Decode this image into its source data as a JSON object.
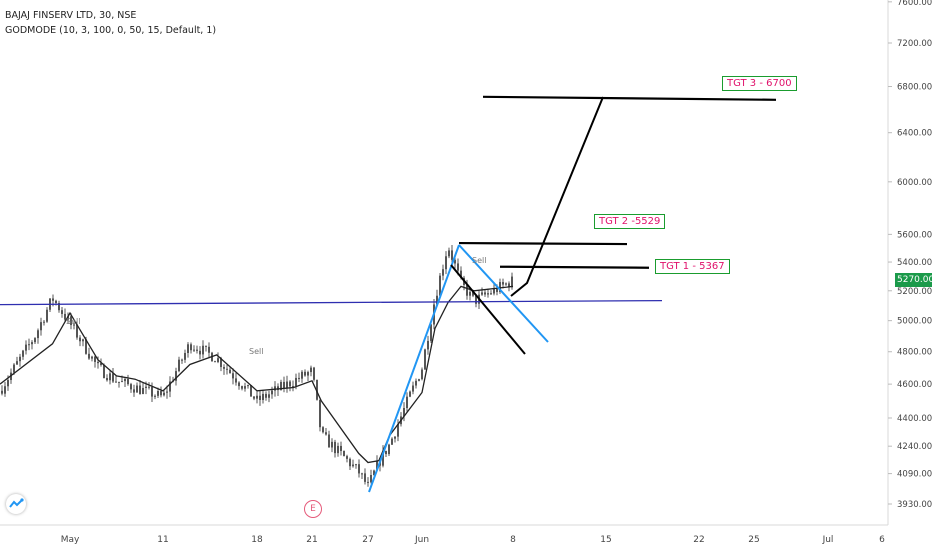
{
  "header": {
    "symbol": "BAJAJ FINSERV LTD, 30, NSE",
    "indicator": "GODMODE (10, 3, 100, 0, 50, 15, Default, 1)"
  },
  "targets": [
    {
      "label": "TGT 3 - 6700"
    },
    {
      "label": "TGT 2 -5529"
    },
    {
      "label": "TGT 1 - 5367"
    }
  ],
  "last_price": "5270.00",
  "event_marker": "E",
  "colors": {
    "candle": "#555555",
    "moving_average": "#222222",
    "horizontal_support": "#2f2fb0",
    "trend_channel": "#2196f3",
    "projection_lines": "#000000",
    "target_border": "#1a9c2e",
    "target_text": "#e0116b",
    "price_badge": "#1b9a4a"
  },
  "icons": {
    "logo": "tradingview-logo-icon"
  },
  "chart_data": {
    "type": "line",
    "y_scale": "log",
    "ylim": [
      3850,
      7800
    ],
    "y_ticks": [
      "7600.00",
      "7200.00",
      "6800.00",
      "6400.00",
      "6000.00",
      "5600.00",
      "5400.00",
      "5200.00",
      "5000.00",
      "4800.00",
      "4600.00",
      "4400.00",
      "4240.00",
      "4090.00",
      "3930.00"
    ],
    "x_ticks": [
      "May",
      "11",
      "18",
      "21",
      "27",
      "Jun",
      "8",
      "15",
      "22",
      "25",
      "Jul",
      "6"
    ],
    "annotations": [
      "Sell",
      "Sell",
      "Sell"
    ],
    "series": [
      {
        "role": "price_path",
        "x": [
          "Apr 27",
          "Apr 29",
          "Apr 30",
          "May 1",
          "May 4",
          "May 6",
          "May 8",
          "May 11",
          "May 13",
          "May 15",
          "May 18",
          "May 20",
          "May 21",
          "May 22",
          "May 26",
          "May 27",
          "May 28",
          "May 29",
          "Jun 1",
          "Jun 2",
          "Jun 3",
          "Jun 4",
          "Jun 5",
          "Jun 8"
        ],
        "values": [
          4560,
          4900,
          5150,
          4980,
          4700,
          4620,
          4580,
          4520,
          4850,
          4760,
          4500,
          4620,
          4680,
          4300,
          4100,
          4020,
          4150,
          4250,
          4700,
          5150,
          5520,
          5250,
          5130,
          5270
        ]
      },
      {
        "role": "moving_average",
        "x": [
          "Apr 27",
          "Apr 30",
          "May 1",
          "May 4",
          "May 6",
          "May 8",
          "May 11",
          "May 13",
          "May 15",
          "May 18",
          "May 20",
          "May 21",
          "May 22",
          "May 26",
          "May 27",
          "May 28",
          "May 29",
          "Jun 1",
          "Jun 2",
          "Jun 3",
          "Jun 4",
          "Jun 5",
          "Jun 8"
        ],
        "values": [
          4600,
          4850,
          5050,
          4750,
          4650,
          4630,
          4560,
          4720,
          4780,
          4560,
          4580,
          4620,
          4500,
          4200,
          4150,
          4160,
          4300,
          4550,
          4950,
          5120,
          5230,
          5200,
          5230
        ]
      }
    ],
    "horizontal_level": 5120,
    "projection_levels": [
      6700,
      5529,
      5367
    ]
  }
}
